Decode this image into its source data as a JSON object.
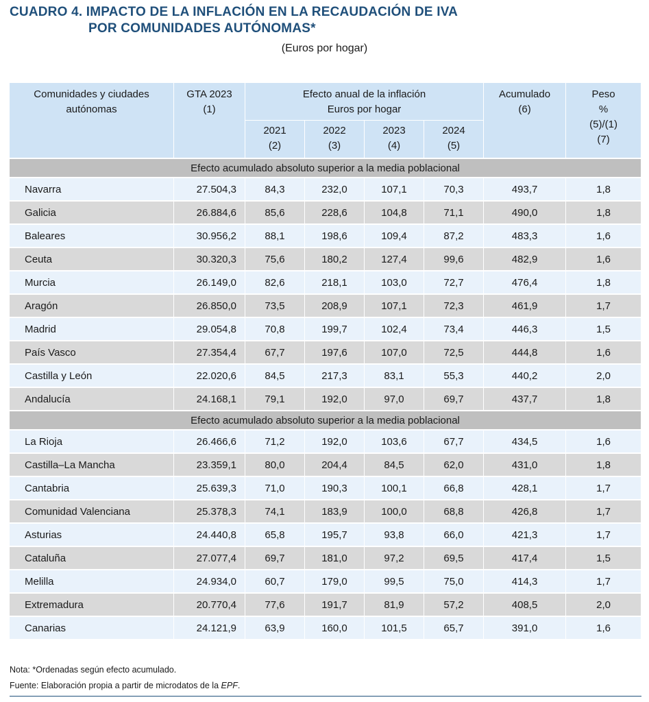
{
  "title": {
    "line1": "CUADRO 4. IMPACTO DE LA INFLACIÓN EN LA RECAUDACIÓN DE IVA",
    "line2": "POR COMUNIDADES AUTÓNOMAS*"
  },
  "subtitle": "(Euros por hogar)",
  "header": {
    "col_region": "Comunidades y ciudades autónomas",
    "col_gta": "GTA 2023",
    "col_gta_ref": "(1)",
    "col_effect": "Efecto anual de la inflación",
    "col_effect_sub": "Euros por hogar",
    "years": [
      {
        "year": "2021",
        "ref": "(2)"
      },
      {
        "year": "2022",
        "ref": "(3)"
      },
      {
        "year": "2023",
        "ref": "(4)"
      },
      {
        "year": "2024",
        "ref": "(5)"
      }
    ],
    "col_acum": "Acumulado",
    "col_acum_ref": "(6)",
    "col_peso": "Peso",
    "col_peso_unit": "%",
    "col_peso_formula": "(5)/(1)",
    "col_peso_ref": "(7)"
  },
  "sections": [
    {
      "label": "Efecto acumulado absoluto superior a la media poblacional",
      "rows": [
        [
          "Navarra",
          "27.504,3",
          "84,3",
          "232,0",
          "107,1",
          "70,3",
          "493,7",
          "1,8"
        ],
        [
          "Galicia",
          "26.884,6",
          "85,6",
          "228,6",
          "104,8",
          "71,1",
          "490,0",
          "1,8"
        ],
        [
          "Baleares",
          "30.956,2",
          "88,1",
          "198,6",
          "109,4",
          "87,2",
          "483,3",
          "1,6"
        ],
        [
          "Ceuta",
          "30.320,3",
          "75,6",
          "180,2",
          "127,4",
          "99,6",
          "482,9",
          "1,6"
        ],
        [
          "Murcia",
          "26.149,0",
          "82,6",
          "218,1",
          "103,0",
          "72,7",
          "476,4",
          "1,8"
        ],
        [
          "Aragón",
          "26.850,0",
          "73,5",
          "208,9",
          "107,1",
          "72,3",
          "461,9",
          "1,7"
        ],
        [
          "Madrid",
          "29.054,8",
          "70,8",
          "199,7",
          "102,4",
          "73,4",
          "446,3",
          "1,5"
        ],
        [
          "País Vasco",
          "27.354,4",
          "67,7",
          "197,6",
          "107,0",
          "72,5",
          "444,8",
          "1,6"
        ],
        [
          "Castilla y León",
          "22.020,6",
          "84,5",
          "217,3",
          "83,1",
          "55,3",
          "440,2",
          "2,0"
        ],
        [
          "Andalucía",
          "24.168,1",
          "79,1",
          "192,0",
          "97,0",
          "69,7",
          "437,7",
          "1,8"
        ]
      ]
    },
    {
      "label": "Efecto acumulado absoluto superior a la media poblacional",
      "rows": [
        [
          "La Rioja",
          "26.466,6",
          "71,2",
          "192,0",
          "103,6",
          "67,7",
          "434,5",
          "1,6"
        ],
        [
          "Castilla–La Mancha",
          "23.359,1",
          "80,0",
          "204,4",
          "84,5",
          "62,0",
          "431,0",
          "1,8"
        ],
        [
          "Cantabria",
          "25.639,3",
          "71,0",
          "190,3",
          "100,1",
          "66,8",
          "428,1",
          "1,7"
        ],
        [
          "Comunidad Valenciana",
          "25.378,3",
          "74,1",
          "183,9",
          "100,0",
          "68,8",
          "426,8",
          "1,7"
        ],
        [
          "Asturias",
          "24.440,8",
          "65,8",
          "195,7",
          "93,8",
          "66,0",
          "421,3",
          "1,7"
        ],
        [
          "Cataluña",
          "27.077,4",
          "69,7",
          "181,0",
          "97,2",
          "69,5",
          "417,4",
          "1,5"
        ],
        [
          "Melilla",
          "24.934,0",
          "60,7",
          "179,0",
          "99,5",
          "75,0",
          "414,3",
          "1,7"
        ],
        [
          "Extremadura",
          "20.770,4",
          "77,6",
          "191,7",
          "81,9",
          "57,2",
          "408,5",
          "2,0"
        ],
        [
          "Canarias",
          "24.121,9",
          "63,9",
          "160,0",
          "101,5",
          "65,7",
          "391,0",
          "1,6"
        ]
      ]
    }
  ],
  "notes": {
    "nota": "Nota: *Ordenadas según efecto acumulado.",
    "fuente_prefix": "Fuente: Elaboración propia a partir de microdatos de la ",
    "fuente_epf": "EPF",
    "fuente_suffix": "."
  }
}
